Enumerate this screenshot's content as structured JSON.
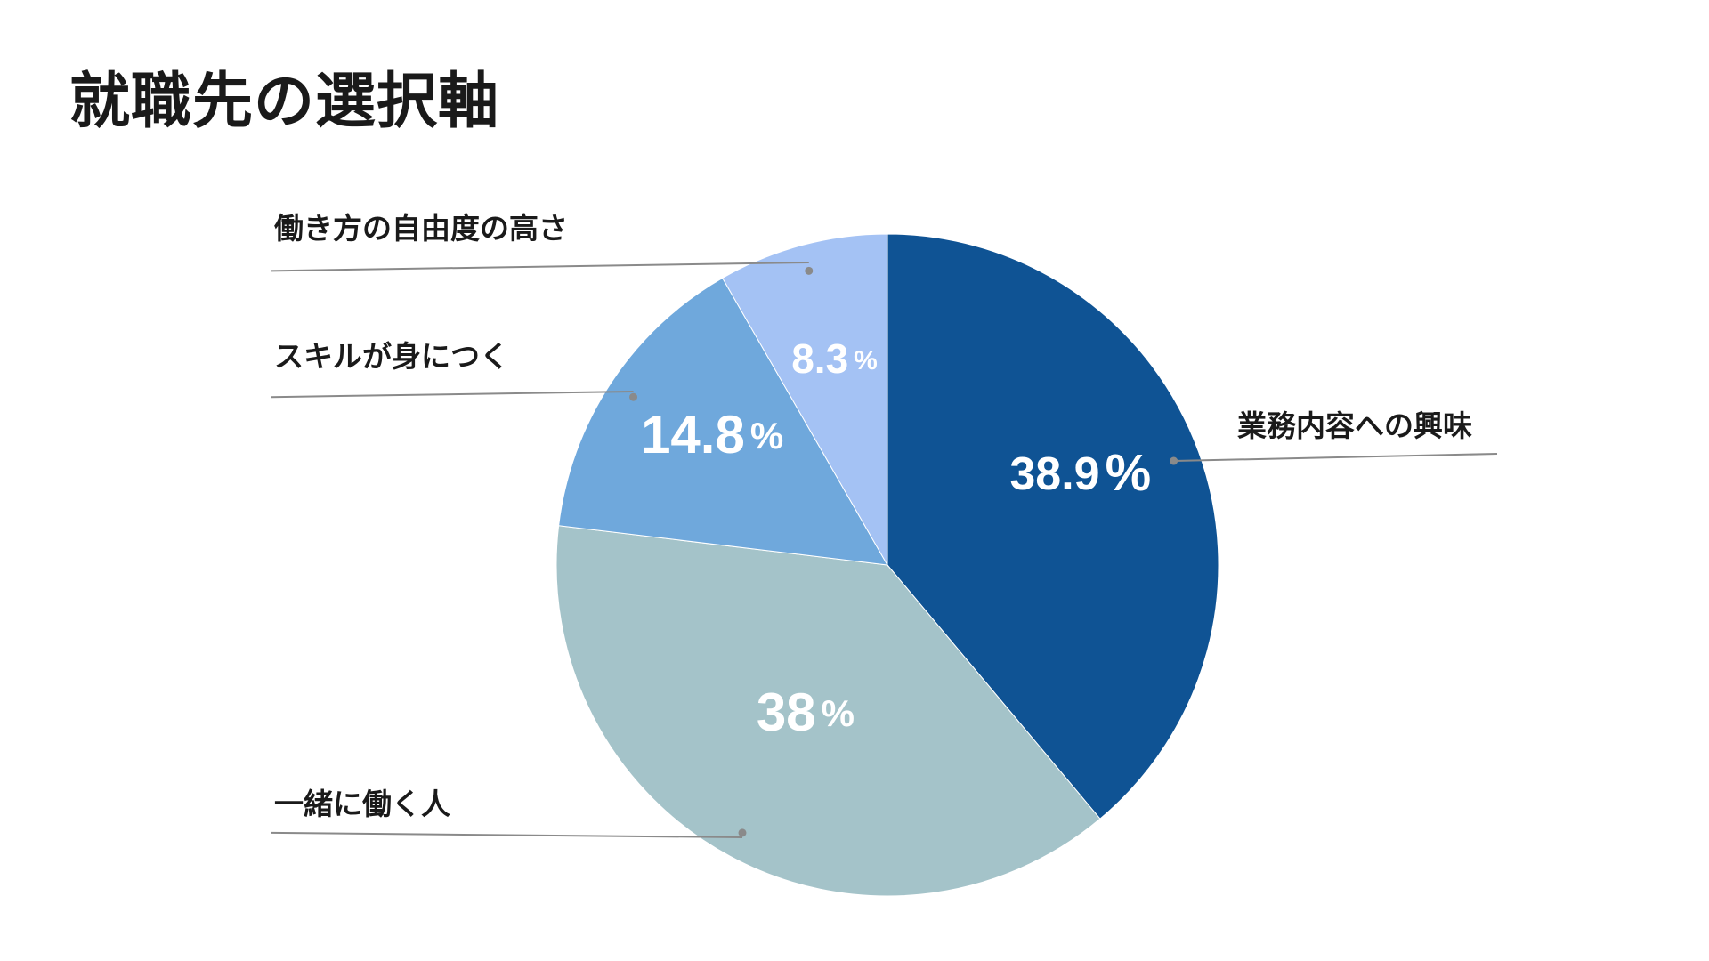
{
  "title": "就職先の選択軸",
  "chart_data": {
    "type": "pie",
    "title": "就職先の選択軸",
    "unit": "%",
    "categories": [
      "業務内容への興味",
      "一緒に働く人",
      "スキルが身につく",
      "働き方の自由度の高さ"
    ],
    "values": [
      38.9,
      38,
      14.8,
      8.3
    ],
    "value_labels": [
      "38.9",
      "38",
      "14.8",
      "8.3"
    ],
    "colors": [
      "#0f5394",
      "#a4c3c9",
      "#6fa8dc",
      "#a4c2f4"
    ],
    "start": "12 o'clock",
    "direction": "clockwise",
    "legend": "callout labels with leader lines"
  }
}
